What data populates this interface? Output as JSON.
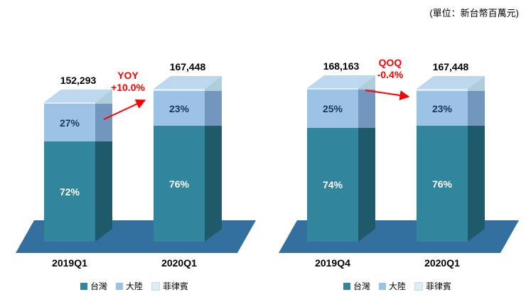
{
  "unit_note": "(單位：新台幣百萬元)",
  "colors": {
    "taiwan": "#31859C",
    "taiwan_side": "#1F5A6B",
    "china": "#9CC3E5",
    "china_side": "#7296BD",
    "philippines": "#DAEEF3",
    "philippines_side": "#AFCEDC",
    "bar_top": "#BDD7EE",
    "floor": "#336F9F",
    "annotation_red": "#FF0000",
    "pct_dark": "#17375E"
  },
  "charts": [
    {
      "name": "yoy-comparison",
      "annotation": {
        "line1": "YOY",
        "line2": "+10.0%"
      },
      "bars": [
        {
          "category": "2019Q1",
          "total": 152293,
          "total_label": "152,293",
          "segments": [
            {
              "name": "台灣",
              "pct": 72,
              "label": "72%"
            },
            {
              "name": "大陸",
              "pct": 27,
              "label": "27%"
            },
            {
              "name": "菲律賓",
              "pct": 1,
              "label": ""
            }
          ]
        },
        {
          "category": "2020Q1",
          "total": 167448,
          "total_label": "167,448",
          "segments": [
            {
              "name": "台灣",
              "pct": 76,
              "label": "76%"
            },
            {
              "name": "大陸",
              "pct": 23,
              "label": "23%"
            },
            {
              "name": "菲律賓",
              "pct": 1,
              "label": ""
            }
          ]
        }
      ],
      "legend": [
        "台灣",
        "大陸",
        "菲律賓"
      ]
    },
    {
      "name": "qoq-comparison",
      "annotation": {
        "line1": "QOQ",
        "line2": "-0.4%"
      },
      "bars": [
        {
          "category": "2019Q4",
          "total": 168163,
          "total_label": "168,163",
          "segments": [
            {
              "name": "台灣",
              "pct": 74,
              "label": "74%"
            },
            {
              "name": "大陸",
              "pct": 25,
              "label": "25%"
            },
            {
              "name": "菲律賓",
              "pct": 1,
              "label": ""
            }
          ]
        },
        {
          "category": "2020Q1",
          "total": 167448,
          "total_label": "167,448",
          "segments": [
            {
              "name": "台灣",
              "pct": 76,
              "label": "76%"
            },
            {
              "name": "大陸",
              "pct": 23,
              "label": "23%"
            },
            {
              "name": "菲律賓",
              "pct": 1,
              "label": ""
            }
          ]
        }
      ],
      "legend": [
        "台灣",
        "大陸",
        "菲律賓"
      ]
    }
  ],
  "chart_data": [
    {
      "type": "bar",
      "stacked": true,
      "pseudo_3d": true,
      "title": "",
      "unit": "新台幣百萬元",
      "categories": [
        "2019Q1",
        "2020Q1"
      ],
      "totals": [
        152293,
        167448
      ],
      "series": [
        {
          "name": "台灣",
          "values_pct": [
            72,
            76
          ]
        },
        {
          "name": "大陸",
          "values_pct": [
            27,
            23
          ]
        },
        {
          "name": "菲律賓",
          "values_pct": [
            1,
            1
          ]
        }
      ],
      "annotation": "YOY +10.0%",
      "legend_position": "bottom"
    },
    {
      "type": "bar",
      "stacked": true,
      "pseudo_3d": true,
      "title": "",
      "unit": "新台幣百萬元",
      "categories": [
        "2019Q4",
        "2020Q1"
      ],
      "totals": [
        168163,
        167448
      ],
      "series": [
        {
          "name": "台灣",
          "values_pct": [
            74,
            76
          ]
        },
        {
          "name": "大陸",
          "values_pct": [
            25,
            23
          ]
        },
        {
          "name": "菲律賓",
          "values_pct": [
            1,
            1
          ]
        }
      ],
      "annotation": "QOQ -0.4%",
      "legend_position": "bottom"
    }
  ]
}
